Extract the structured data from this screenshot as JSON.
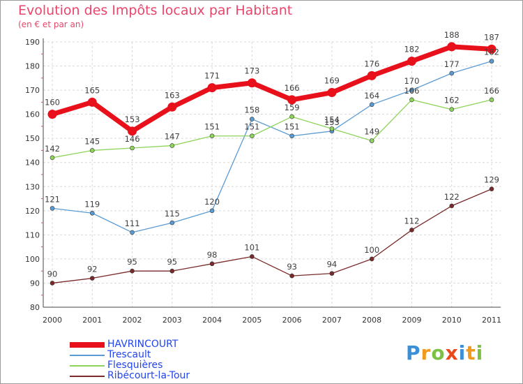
{
  "chart_data": {
    "type": "line",
    "title": "Evolution des Impôts locaux par Habitant",
    "subtitle": "(en € et par an)",
    "x": [
      "2000",
      "2001",
      "2002",
      "2003",
      "2004",
      "2005",
      "2006",
      "2007",
      "2008",
      "2009",
      "2010",
      "2011"
    ],
    "ylim": [
      80,
      190
    ],
    "yticks": [
      80,
      90,
      100,
      110,
      120,
      130,
      140,
      150,
      160,
      170,
      180,
      190
    ],
    "grid": true,
    "series": [
      {
        "name": "HAVRINCOURT",
        "color": "#e8101a",
        "values": [
          160,
          165,
          153,
          163,
          171,
          173,
          166,
          169,
          176,
          182,
          188,
          187
        ]
      },
      {
        "name": "Trescault",
        "color": "#5a9bd4",
        "values": [
          121,
          119,
          111,
          115,
          120,
          158,
          151,
          153,
          164,
          170,
          177,
          182
        ]
      },
      {
        "name": "Flesquières",
        "color": "#8fd45a",
        "values": [
          142,
          145,
          146,
          147,
          151,
          151,
          159,
          154,
          149,
          166,
          162,
          166
        ]
      },
      {
        "name": "Ribécourt-la-Tour",
        "color": "#7a2a2a",
        "values": [
          90,
          92,
          95,
          95,
          98,
          101,
          93,
          94,
          100,
          112,
          122,
          129
        ]
      }
    ]
  },
  "logo": {
    "letters": [
      "P",
      "r",
      "o",
      "x",
      "i",
      "t",
      "i"
    ],
    "colors": [
      "#3a8fd9",
      "#f09a1f",
      "#7cc242",
      "#e84a1b",
      "#3a8fd9",
      "#f09a1f",
      "#7cc242"
    ]
  }
}
